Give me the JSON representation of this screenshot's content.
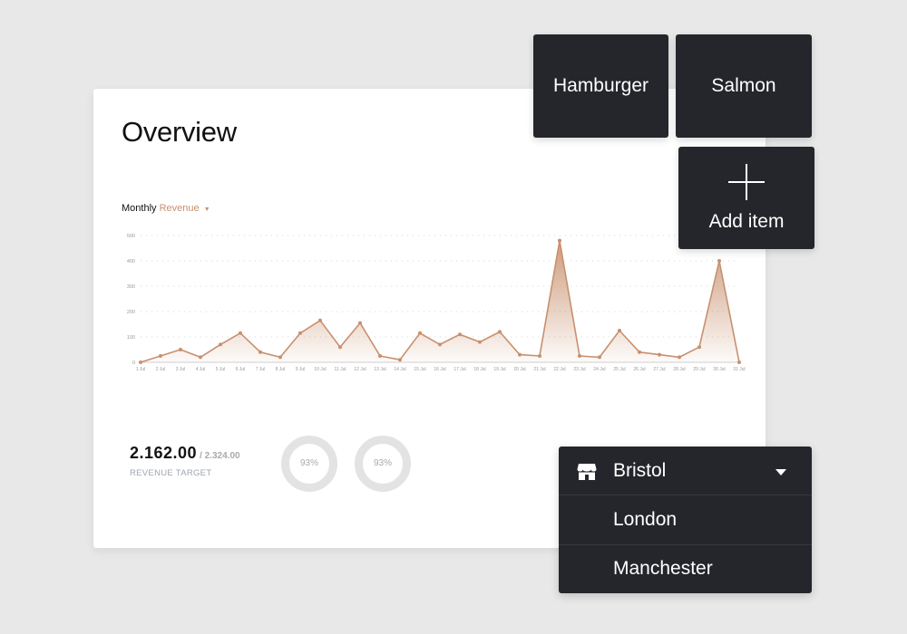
{
  "overview": {
    "title": "Overview",
    "metric_prefix": "Monthly",
    "metric_selected": "Revenue",
    "colors": {
      "accent": "#c8906e",
      "card_bg": "#ffffff",
      "grid": "#d8d8d8"
    }
  },
  "chart_data": {
    "type": "area",
    "title": "",
    "xlabel": "",
    "ylabel": "",
    "ylim": [
      0,
      500
    ],
    "yticks": [
      "0",
      "100",
      "200",
      "300",
      "400",
      "500"
    ],
    "categories": [
      "1 Jul",
      "2 Jul",
      "3 Jul",
      "4 Jul",
      "5 Jul",
      "6 Jul",
      "7 Jul",
      "8 Jul",
      "9 Jul",
      "10 Jul",
      "11 Jul",
      "12 Jul",
      "13 Jul",
      "14 Jul",
      "15 Jul",
      "16 Jul",
      "17 Jul",
      "18 Jul",
      "19 Jul",
      "20 Jul",
      "21 Jul",
      "22 Jul",
      "23 Jul",
      "24 Jul",
      "25 Jul",
      "26 Jul",
      "27 Jul",
      "28 Jul",
      "29 Jul",
      "30 Jul",
      "31 Jul"
    ],
    "series": [
      {
        "values": [
          0,
          25,
          50,
          20,
          70,
          115,
          40,
          20,
          115,
          165,
          60,
          155,
          25,
          10,
          115,
          70,
          110,
          80,
          120,
          30,
          25,
          480,
          25,
          20,
          125,
          40,
          30,
          20,
          60,
          400,
          0
        ]
      }
    ],
    "grid": true,
    "line_color": "#c8906e"
  },
  "stats": {
    "value": "2.162.00",
    "total": "/ 2.324.00",
    "label": "REVENUE TARGET",
    "donuts": [
      {
        "label": "93%",
        "value": 93
      },
      {
        "label": "93%",
        "value": 93
      }
    ]
  },
  "tiles": {
    "items": [
      "Hamburger",
      "Salmon"
    ],
    "add_label": "Add item",
    "bg": "#24262b"
  },
  "location_dropdown": {
    "selected": "Bristol",
    "options": [
      "London",
      "Manchester"
    ]
  }
}
